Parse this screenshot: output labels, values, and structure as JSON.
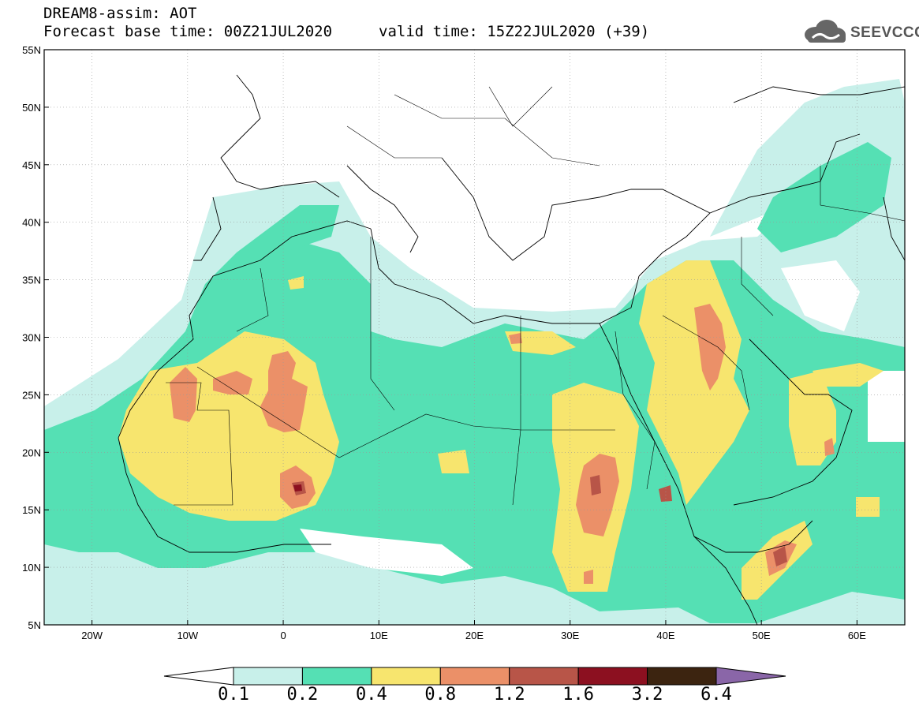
{
  "header": {
    "title_line1": "DREAM8-assim: AOT",
    "title_line2": "Forecast base time: 00Z21JUL2020",
    "valid_time": "valid time: 15Z22JUL2020 (+39)"
  },
  "logo": {
    "text": "SEEVCCC",
    "icon": "cloud-icon"
  },
  "map": {
    "lon_range": [
      -25,
      65
    ],
    "lat_range": [
      5,
      55
    ],
    "lat_labels": [
      "55N",
      "50N",
      "45N",
      "40N",
      "35N",
      "30N",
      "25N",
      "20N",
      "15N",
      "10N",
      "5N"
    ],
    "lon_labels": [
      "20W",
      "10W",
      "0",
      "10E",
      "20E",
      "30E",
      "40E",
      "50E",
      "60E"
    ],
    "grid": true
  },
  "colorbar": {
    "colors": [
      "#ffffff",
      "#c8f0ea",
      "#55e0b4",
      "#f7e56e",
      "#eb9068",
      "#b85548",
      "#8c1020",
      "#3c2410",
      "#8a66a8"
    ],
    "labels": [
      "0.1",
      "0.2",
      "0.4",
      "0.8",
      "1.2",
      "1.6",
      "3.2",
      "6.4"
    ]
  },
  "palette": {
    "c1": "#c8f0ea",
    "c2": "#55e0b4",
    "c3": "#f7e56e",
    "c4": "#eb9068",
    "c5": "#b85548",
    "c6": "#8c1020",
    "c7": "#3c2410",
    "c8": "#8a66a8"
  }
}
